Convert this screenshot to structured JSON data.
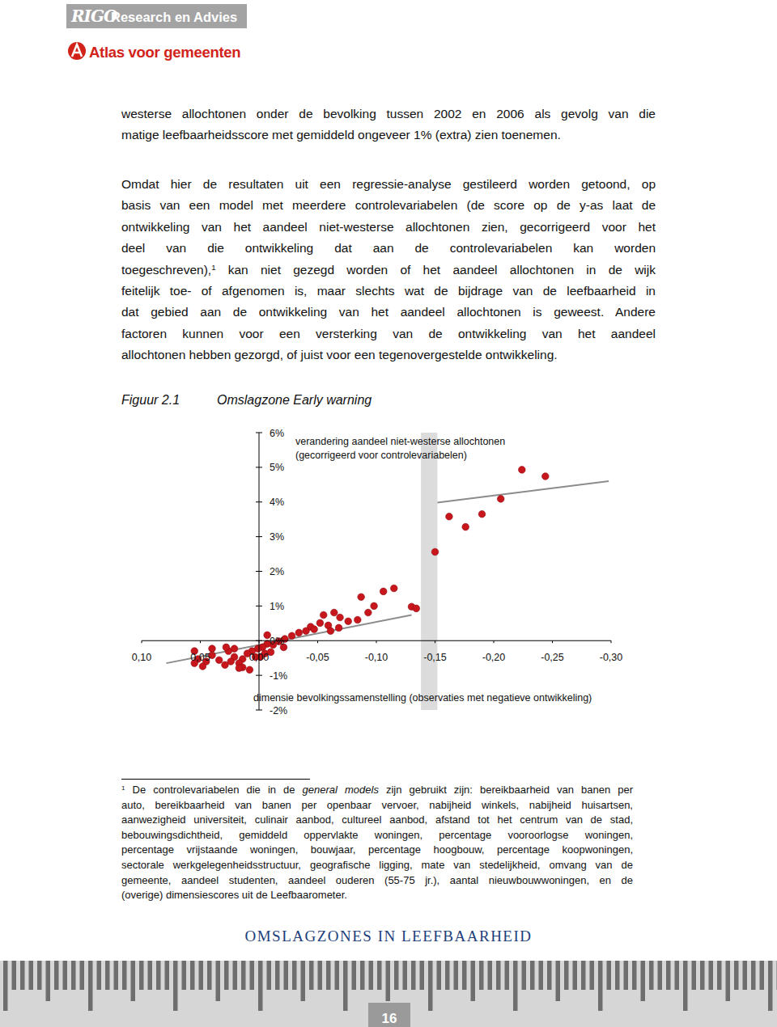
{
  "header": {
    "logo": "RIGO",
    "subtitle": "Research en Advies",
    "brand": "Atlas voor gemeenten"
  },
  "paragraphs": [
    {
      "lines": [
        "westerse allochtonen onder de bevolking tussen 2002 en 2006 als gevolg van die",
        "matige leefbaarheidsscore met gemiddeld ongeveer 1% (extra) zien toenemen."
      ]
    },
    {
      "lines": [
        "Omdat hier de resultaten uit een regressie-analyse gestileerd worden getoond, op",
        "basis van een model met meerdere controlevariabelen (de score op de y-as laat de",
        "ontwikkeling van het aandeel niet-westerse allochtonen zien, gecorrigeerd voor het",
        "deel van die ontwikkeling dat aan de controlevariabelen kan worden",
        [
          {
            "text": "toegeschreven),"
          },
          {
            "text": "1",
            "style": "sup"
          },
          {
            "text": " kan niet gezegd worden of het aandeel allochtonen in de wijk"
          }
        ],
        "feitelijk toe- of afgenomen is, maar slechts wat de bijdrage van de leefbaarheid in",
        "dat gebied aan de ontwikkeling van het aandeel allochtonen is geweest. Andere",
        "factoren kunnen voor een versterking van de ontwikkeling van het aandeel",
        "allochtonen hebben gezorgd, of juist voor een tegenovergestelde ontwikkeling."
      ]
    }
  ],
  "figure": {
    "label": "Figuur 2.1"
  },
  "chart_data": {
    "type": "scatter",
    "title": "Omslagzone Early warning",
    "y_label": [
      "verandering aandeel niet-westerse allochtonen",
      "(gecorrigeerd voor controlevariabelen)"
    ],
    "x_label": "dimensie bevolkingssamenstelling (observaties met negatieve ontwikkeling)",
    "xlim": [
      0.1,
      -0.3
    ],
    "ylim": [
      -2,
      6
    ],
    "xticks": [
      {
        "value": 0.1,
        "label": "0,10"
      },
      {
        "value": 0.05,
        "label": "0,05"
      },
      {
        "value": 0,
        "label": "0,00"
      },
      {
        "value": -0.05,
        "label": "-0,05"
      },
      {
        "value": -0.1,
        "label": "-0,10"
      },
      {
        "value": -0.15,
        "label": "-0,15"
      },
      {
        "value": -0.2,
        "label": "-0,20"
      },
      {
        "value": -0.25,
        "label": "-0,25"
      },
      {
        "value": -0.3,
        "label": "-0,30"
      }
    ],
    "yticks": [
      {
        "value": -2,
        "label": "-2%"
      },
      {
        "value": -1,
        "label": "-1%"
      },
      {
        "value": 0,
        "label": "0%"
      },
      {
        "value": 1,
        "label": "1%"
      },
      {
        "value": 2,
        "label": "2%"
      },
      {
        "value": 3,
        "label": "3%"
      },
      {
        "value": 4,
        "label": "4%"
      },
      {
        "value": 5,
        "label": "5%"
      },
      {
        "value": 6,
        "label": "6%"
      }
    ],
    "grid": false,
    "band_x": [
      -0.138,
      -0.152
    ],
    "band_color": "#dcdcdc",
    "series": [
      {
        "type": "scatter",
        "color": "#c8161d",
        "marker": "circle",
        "x": [
          -0.224,
          -0.244,
          -0.162,
          -0.176,
          -0.19,
          -0.206,
          -0.15,
          -0.13,
          -0.134,
          -0.115,
          -0.106,
          -0.098,
          -0.087,
          -0.076,
          -0.069,
          -0.084,
          -0.055,
          -0.059,
          -0.064,
          -0.052,
          -0.044,
          -0.04,
          -0.047,
          -0.034,
          -0.028,
          -0.022,
          -0.017,
          -0.012,
          -0.007,
          -0.003,
          0.001,
          0.006,
          0.01,
          0.014,
          0.017,
          0.021,
          0.024,
          0.029,
          0.034,
          0.04,
          0.045,
          0.048,
          0.052,
          0.055,
          0.014,
          0.017,
          0.008,
          0.003,
          -0.001,
          -0.005,
          -0.01,
          0.021,
          0.026,
          0.055,
          0.04,
          0.028,
          -0.061,
          -0.068,
          -0.093,
          -0.021,
          -0.007
        ],
        "values": [
          4.93,
          4.74,
          3.58,
          3.28,
          3.65,
          4.09,
          2.56,
          0.98,
          0.93,
          1.51,
          1.42,
          1.0,
          1.26,
          0.56,
          0.67,
          0.6,
          0.74,
          0.44,
          0.81,
          0.51,
          0.4,
          0.28,
          0.33,
          0.23,
          0.14,
          0.05,
          -0.02,
          -0.12,
          -0.09,
          -0.19,
          -0.23,
          -0.3,
          -0.37,
          -0.53,
          -0.65,
          -0.47,
          -0.6,
          -0.7,
          -0.56,
          -0.42,
          -0.6,
          -0.74,
          -0.53,
          -0.65,
          -0.77,
          -0.79,
          -0.84,
          -0.47,
          -0.47,
          -0.37,
          -0.33,
          -0.23,
          -0.3,
          -0.3,
          -0.23,
          -0.19,
          0.28,
          0.37,
          0.81,
          -0.19,
          0.16
        ]
      },
      {
        "type": "line",
        "color": "#8c8c8c",
        "line_style": "solid",
        "x": [
          0.079,
          -0.13
        ],
        "values": [
          -0.65,
          0.74
        ]
      },
      {
        "type": "line",
        "color": "#8c8c8c",
        "line_style": "solid",
        "x": [
          -0.152,
          -0.298
        ],
        "values": [
          3.98,
          4.6
        ]
      }
    ]
  },
  "footnote": {
    "lines": [
      [
        {
          "text": "1",
          "style": "sup"
        },
        {
          "text": " De controlevariabelen die in de "
        },
        {
          "text": "general models",
          "style": "italic"
        },
        {
          "text": " zijn gebruikt zijn: bereikbaarheid van banen per"
        }
      ],
      "auto, bereikbaarheid van banen per openbaar vervoer, nabijheid winkels, nabijheid huisartsen,",
      "aanwezigheid universiteit, culinair aanbod, cultureel aanbod, afstand tot het centrum van de stad,",
      "bebouwingsdichtheid, gemiddeld oppervlakte woningen, percentage vooroorlogse woningen,",
      "percentage vrijstaande woningen, bouwjaar, percentage hoogbouw, percentage koopwoningen,",
      "sectorale werkgelegenheidsstructuur, geografische ligging, mate van stedelijkheid, omvang van de",
      "gemeente, aandeel studenten, aandeel ouderen (55-75 jr.), aantal nieuwbouwwoningen, en de",
      "(overige) dimensiescores uit de Leefbaarometer."
    ]
  },
  "footer": {
    "title": "OMSLAGZONES IN LEEFBAARHEID",
    "page_number": "16"
  }
}
